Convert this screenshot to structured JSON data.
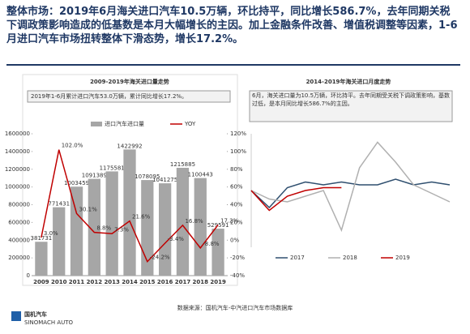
{
  "header": {
    "text": "整体市场：2019年6月海关进口汽车10.5万辆，环比持平，同比增长586.7%，去年同期关税下调政策影响造成的低基数是本月大幅增长的主因。加上金融条件改善、增值税调整等因素，1-6月进口汽车市场扭转整体下滑态势，增长17.2%。"
  },
  "chart_data": [
    {
      "type": "bar",
      "title": "2009-2019年海关进口量走势",
      "annotation": "2019年1-6月累计进口汽车53.0万辆，累计同比增长17.2%。",
      "categories": [
        "2009",
        "2010",
        "2011",
        "2012",
        "2013",
        "2014",
        "2015",
        "2016",
        "2017",
        "2018",
        "2019"
      ],
      "series": [
        {
          "name": "进口汽车进口量",
          "color": "#a6a6a6",
          "values": [
            381731,
            771431,
            1003459,
            1091389,
            1175581,
            1422992,
            1078095,
            1041275,
            1215885,
            1100443,
            529591
          ]
        },
        {
          "name": "YOY",
          "color": "#c00000",
          "axis": "y2",
          "type": "line",
          "values": [
            3.0,
            102.0,
            30.1,
            8.8,
            7.3,
            21.6,
            -24.2,
            -3.4,
            16.8,
            -8.8,
            17.2
          ],
          "value_labels": [
            "3.0%",
            "102.0%",
            "30.1%",
            "8.8%",
            "7.3%",
            "21.6%",
            "-24.2%",
            "-3.4%",
            "16.8%",
            "-8.8%",
            "17.2%"
          ]
        }
      ],
      "ylim": [
        0,
        1600000
      ],
      "yticks": [
        0,
        200000,
        400000,
        600000,
        800000,
        1000000,
        1200000,
        1400000,
        1600000
      ],
      "y2lim": [
        -40,
        120
      ],
      "y2ticks": [
        {
          "value": -40,
          "label": "-40%"
        },
        {
          "value": -20,
          "label": "-20%"
        },
        {
          "value": 0,
          "label": "0%"
        },
        {
          "value": 20,
          "label": "20%"
        },
        {
          "value": 40,
          "label": "40%"
        },
        {
          "value": 60,
          "label": "60%"
        },
        {
          "value": 80,
          "label": "80%"
        },
        {
          "value": 100,
          "label": "100%"
        },
        {
          "value": 120,
          "label": "120%"
        }
      ],
      "legend": "top"
    },
    {
      "type": "line",
      "title": "2014-2019年海关进口月度走势",
      "annotation": "6月，海关进口量为10.5万辆，环比持平。去年同期受关税下调政策影响，基数过低，是本月同比增长586.7%的主因。",
      "series": [
        {
          "name": "2017",
          "color": "#2f4f6f",
          "values": [
            10,
            7,
            10.5,
            11.5,
            11,
            11.5,
            11,
            11,
            12,
            11,
            11.5,
            11
          ]
        },
        {
          "name": "2018",
          "color": "#b0b0b0",
          "values": [
            10,
            8.5,
            8,
            9,
            10,
            3,
            14,
            18.5,
            15,
            11,
            9.5,
            8
          ]
        },
        {
          "name": "2019",
          "color": "#c00000",
          "values": [
            10,
            6.5,
            9,
            10,
            10.5,
            10.5
          ]
        }
      ],
      "ylim": [
        0,
        20
      ],
      "legend": "bottom"
    }
  ],
  "source": "数据来源：国机汽车-中汽进口汽车市场数据库",
  "logo": {
    "name": "国机汽车",
    "sub": "SINOMACH AUTO"
  }
}
